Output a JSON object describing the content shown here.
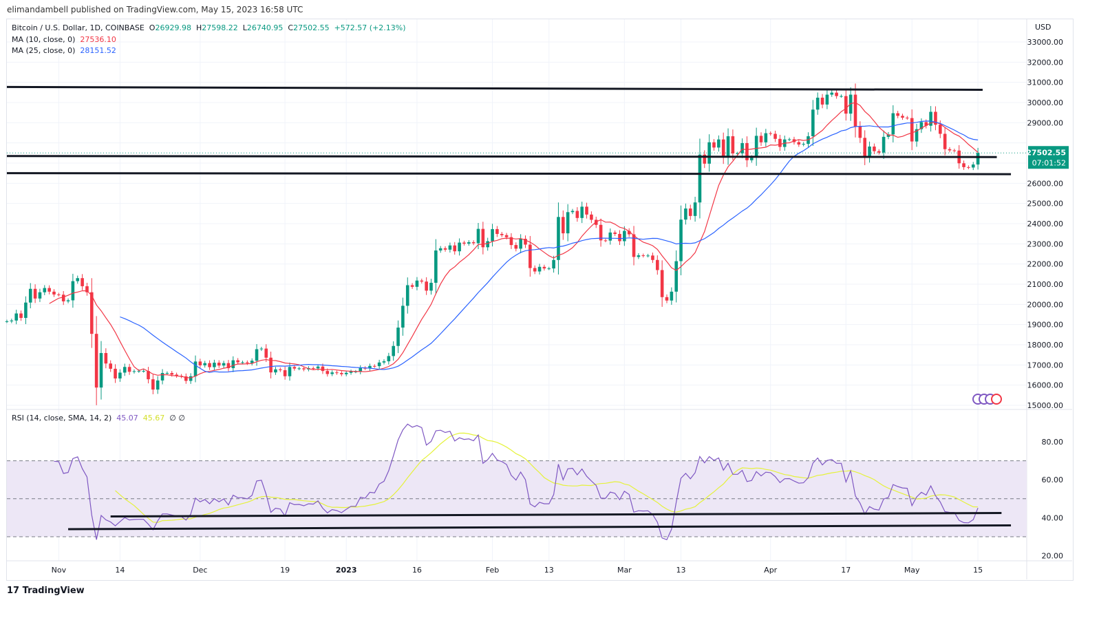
{
  "header": {
    "published": "elimandambell published on TradingView.com, May 15, 2023 16:58 UTC"
  },
  "legend": {
    "symbol": "Bitcoin / U.S. Dollar, 1D, COINBASE",
    "o_label": "O",
    "o": "26929.98",
    "h_label": "H",
    "h": "27598.22",
    "l_label": "L",
    "l": "26740.95",
    "c_label": "C",
    "c": "27502.55",
    "change": "+572.57 (+2.13%)",
    "ma10_label": "MA (10, close, 0)",
    "ma10": "27536.10",
    "ma25_label": "MA (25, close, 0)",
    "ma25": "28151.52",
    "rsi_label": "RSI (14, close, SMA, 14, 2)",
    "rsi": "45.07",
    "rsi_ma": "45.67",
    "rsi_extra": "∅ ∅"
  },
  "footer": {
    "logo": "TradingView"
  },
  "colors": {
    "up": "#089981",
    "down": "#f23645",
    "ma10": "#f23645",
    "ma25": "#2962ff",
    "rsi": "#7e57c2",
    "rsi_ma": "#e5f23a",
    "rsi_band": "#ede7f6"
  },
  "chart_data": [
    {
      "type": "candlestick",
      "title": "Bitcoin / U.S. Dollar, 1D, COINBASE",
      "currency": "USD",
      "start_date": "2022-10-21",
      "close": [
        19160,
        19200,
        19550,
        19330,
        20090,
        20770,
        20290,
        20600,
        20810,
        20630,
        20490,
        20480,
        20150,
        20200,
        21150,
        21300,
        20900,
        20600,
        18540,
        15880,
        17590,
        17070,
        16810,
        16330,
        16620,
        16900,
        16660,
        16690,
        16700,
        16700,
        16290,
        15780,
        16230,
        16600,
        16600,
        16520,
        16460,
        16430,
        16210,
        16440,
        17170,
        16980,
        17090,
        16890,
        17110,
        16970,
        17090,
        16840,
        17230,
        17130,
        17130,
        17090,
        17210,
        17780,
        17810,
        17360,
        16630,
        16780,
        16740,
        16440,
        16900,
        16820,
        16830,
        16780,
        16840,
        16830,
        16920,
        16700,
        16550,
        16630,
        16600,
        16540,
        16610,
        16670,
        16670,
        16850,
        16830,
        16950,
        16940,
        17120,
        17180,
        17440,
        17940,
        18850,
        19930,
        20950,
        20870,
        21180,
        21130,
        20680,
        21070,
        22670,
        22780,
        22710,
        22920,
        22630,
        23060,
        23010,
        23080,
        23030,
        23740,
        22830,
        23130,
        23730,
        23490,
        23430,
        23330,
        22940,
        22760,
        23250,
        22960,
        21800,
        21630,
        21860,
        21780,
        21780,
        22200,
        24330,
        23520,
        24570,
        24630,
        24280,
        24840,
        24450,
        24190,
        23940,
        23170,
        23160,
        23560,
        23490,
        23130,
        23640,
        23470,
        22350,
        22430,
        22410,
        22420,
        22200,
        21700,
        20360,
        20190,
        20630,
        22140,
        24200,
        24750,
        24380,
        25050,
        27420,
        26970,
        28030,
        27770,
        28170,
        27300,
        28330,
        27480,
        27480,
        27990,
        27140,
        27270,
        28350,
        28030,
        28480,
        28450,
        28200,
        27800,
        28170,
        28180,
        28040,
        27920,
        27950,
        28330,
        29650,
        30240,
        29900,
        30390,
        30490,
        30320,
        30320,
        29450,
        30390,
        28820,
        28250,
        27270,
        27820,
        27590,
        27520,
        28300,
        28420,
        29470,
        29340,
        29250,
        29230,
        28070,
        28680,
        29030,
        28850,
        29540,
        28900,
        28450,
        27690,
        27630,
        27620,
        26990,
        26800,
        26780,
        26929.98,
        27502.55
      ],
      "last_price": "27502.55",
      "countdown": "07:01:52",
      "y_ticks": [
        15000,
        16000,
        17000,
        18000,
        19000,
        20000,
        21000,
        22000,
        23000,
        24000,
        25000,
        26000,
        27000,
        28000,
        29000,
        30000,
        31000,
        32000,
        33000
      ],
      "ylim": [
        15000,
        33000
      ],
      "x_ticks": [
        {
          "date": "2022-11-01",
          "label": "Nov"
        },
        {
          "date": "2022-11-14",
          "label": "14"
        },
        {
          "date": "2022-12-01",
          "label": "Dec"
        },
        {
          "date": "2022-12-19",
          "label": "19"
        },
        {
          "date": "2023-01-01",
          "label": "2023"
        },
        {
          "date": "2023-01-16",
          "label": "16"
        },
        {
          "date": "2023-02-01",
          "label": "Feb"
        },
        {
          "date": "2023-02-13",
          "label": "13"
        },
        {
          "date": "2023-03-01",
          "label": "Mar"
        },
        {
          "date": "2023-03-13",
          "label": "13"
        },
        {
          "date": "2023-04-01",
          "label": "Apr"
        },
        {
          "date": "2023-04-17",
          "label": "17"
        },
        {
          "date": "2023-05-01",
          "label": "May"
        },
        {
          "date": "2023-05-15",
          "label": "15"
        }
      ],
      "overlays": [
        "MA 10",
        "MA 25"
      ],
      "trendlines": [
        {
          "from": [
            "2022-10-21",
            30770
          ],
          "to": [
            "2023-05-16",
            30630
          ]
        },
        {
          "from": [
            "2022-10-21",
            27350
          ],
          "to": [
            "2023-05-19",
            27300
          ]
        },
        {
          "from": [
            "2022-10-21",
            26500
          ],
          "to": [
            "2023-05-22",
            26450
          ]
        }
      ],
      "grid": true
    },
    {
      "type": "line",
      "title": "RSI (14, close, SMA, 14, 2)",
      "ylim": [
        15,
        90
      ],
      "y_ticks": [
        20,
        40,
        60,
        80
      ],
      "bands": [
        30,
        50,
        70
      ],
      "trendlines": [
        {
          "from": [
            "2022-11-12",
            40.7
          ],
          "to": [
            "2023-05-20",
            42.5
          ]
        },
        {
          "from": [
            "2022-11-03",
            34
          ],
          "to": [
            "2023-05-22",
            36
          ]
        }
      ]
    }
  ]
}
